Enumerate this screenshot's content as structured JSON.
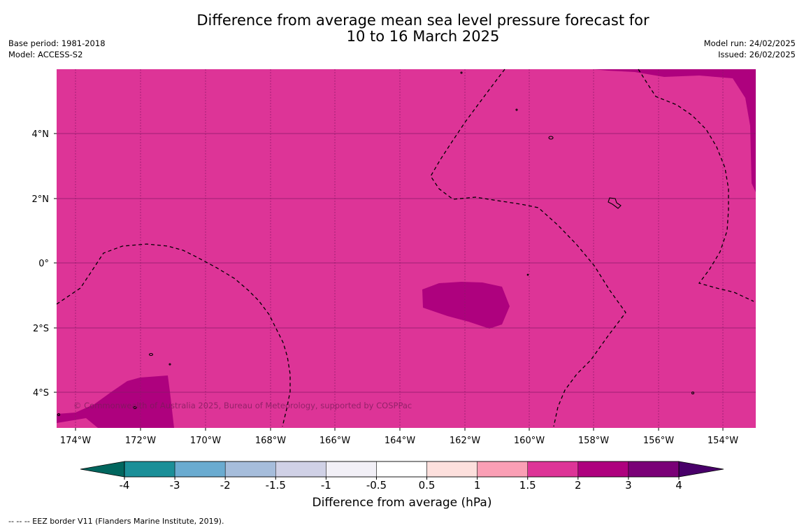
{
  "header": {
    "title_line1": "Difference from average mean sea level pressure forecast for",
    "title_line2": "10 to 16 March 2025",
    "base_period": "Base period: 1981-2018",
    "model": "Model: ACCESS-S2",
    "model_run": "Model run: 24/02/2025",
    "issued": "Issued: 26/02/2025"
  },
  "map": {
    "x_ticks": [
      "174°W",
      "172°W",
      "170°W",
      "168°W",
      "166°W",
      "164°W",
      "162°W",
      "160°W",
      "158°W",
      "156°W",
      "154°W"
    ],
    "y_ticks": [
      "4°N",
      "2°N",
      "0°",
      "2°S",
      "4°S"
    ],
    "copyright": "© Commonwealth of Australia 2025, Bureau of Meteorology, supported by COSPPac",
    "fill_class": "1.5 to 2",
    "patches_class": "2 to 3",
    "colors": {
      "base": "#dd3497",
      "high": "#ae017e",
      "border": "#000000"
    }
  },
  "colorbar": {
    "title": "Difference from average (hPa)",
    "tick_labels": [
      "-4",
      "-3",
      "-2",
      "-1.5",
      "-1",
      "-0.5",
      "0.5",
      "1",
      "1.5",
      "2",
      "3",
      "4"
    ],
    "colors": [
      "#01665e",
      "#1b8f98",
      "#6aabd0",
      "#a6bddb",
      "#d0d1e6",
      "#f2f0f7",
      "#ffffff",
      "#fde0dd",
      "#fa9fb5",
      "#dd3497",
      "#ae017e",
      "#7a0177",
      "#49006a"
    ]
  },
  "footnote": "--  --  -- EEZ border V11 (Flanders Marine Institute, 2019)."
}
